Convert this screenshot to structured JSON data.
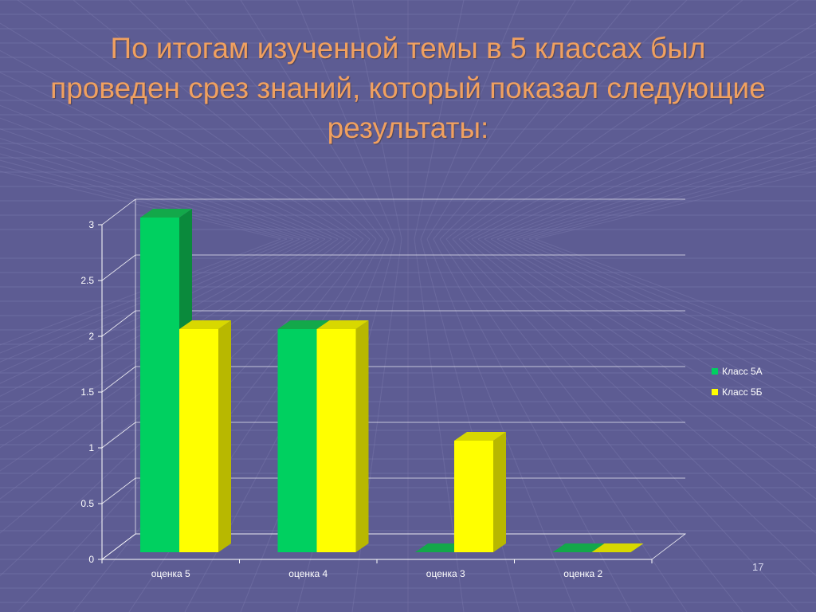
{
  "slide": {
    "title": "По итогам изученной темы в 5 классах был проведен срез знаний, который показал следующие результаты:",
    "page_number": "17",
    "background_color": "#5d5c93",
    "grid_line_color": "#7a79ad",
    "title_color": "#f0a060"
  },
  "chart_data": {
    "type": "bar",
    "categories": [
      "оценка 5",
      "оценка 4",
      "оценка 3",
      "оценка 2"
    ],
    "series": [
      {
        "name": "Класс 5А",
        "values": [
          3,
          2,
          0,
          0
        ],
        "color": "#00d060",
        "side_color": "#0a8a3c",
        "top_color": "#13a84a"
      },
      {
        "name": "Класс 5Б",
        "values": [
          2,
          2,
          1,
          0
        ],
        "color": "#ffff00",
        "side_color": "#b8b800",
        "top_color": "#d8d800"
      }
    ],
    "y_ticks": [
      "0",
      "0.5",
      "1",
      "1.5",
      "2",
      "2.5",
      "3"
    ],
    "ylim": [
      0,
      3
    ],
    "grid": true,
    "legend_position": "right",
    "style": "3d-clustered-column"
  }
}
